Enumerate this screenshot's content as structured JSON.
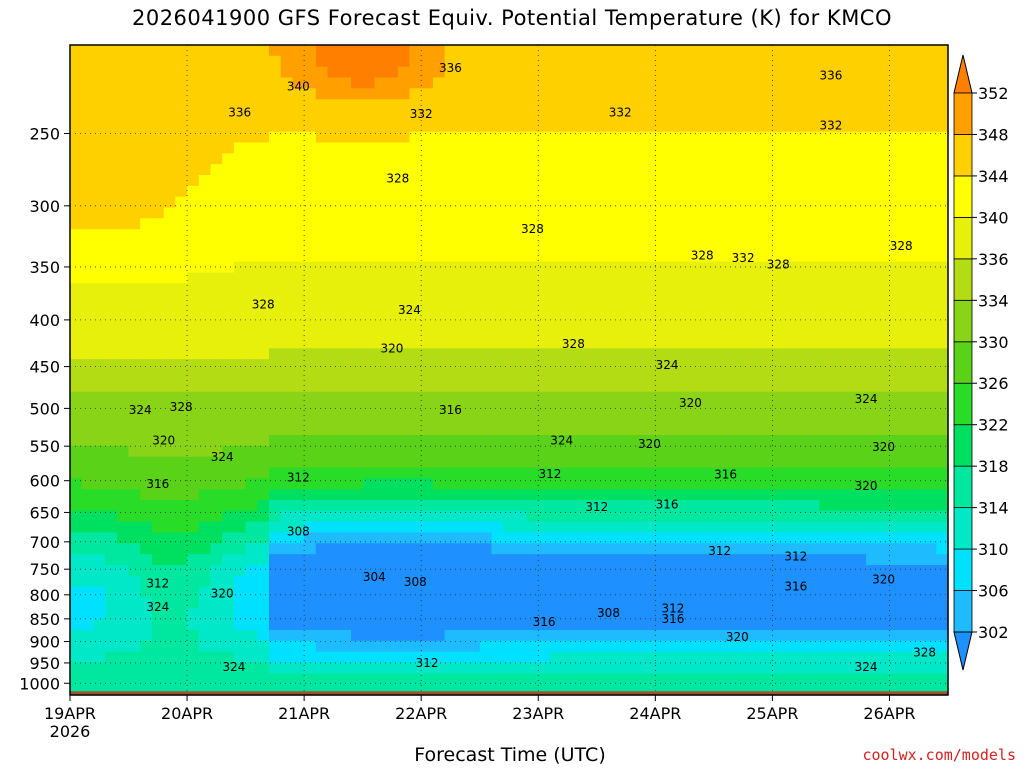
{
  "chart_data": {
    "type": "heatmap",
    "title": "2026041900 GFS Forecast Equiv. Potential Temperature (K) for KMCO",
    "xlabel": "Forecast Time (UTC)",
    "ylabel": "",
    "x_ticks": [
      "19APR",
      "20APR",
      "21APR",
      "22APR",
      "23APR",
      "24APR",
      "25APR",
      "26APR"
    ],
    "x_start_sublabel": "2026",
    "y_ticks": [
      250,
      300,
      350,
      400,
      450,
      500,
      550,
      600,
      650,
      700,
      750,
      800,
      850,
      900,
      950,
      1000
    ],
    "y_scale": "log-pressure",
    "y_range_hPa": [
      200,
      1030
    ],
    "x_range_days": [
      0,
      7.5
    ],
    "grid": true,
    "colorbar": {
      "levels": [
        302,
        306,
        310,
        314,
        318,
        322,
        326,
        330,
        334,
        336,
        340,
        344,
        348,
        352
      ],
      "colors": [
        "#1e90ff",
        "#1ebcff",
        "#00e0ff",
        "#00e8c8",
        "#00e8a0",
        "#00e060",
        "#28dc28",
        "#5ad218",
        "#8ad418",
        "#b4dc14",
        "#e6f00a",
        "#ffff00",
        "#ffd000",
        "#ffa000",
        "#ff8000"
      ]
    },
    "contour_labels": [
      {
        "text": "336",
        "x": 3.25,
        "p": 212
      },
      {
        "text": "340",
        "x": 1.95,
        "p": 222
      },
      {
        "text": "336",
        "x": 1.45,
        "p": 237
      },
      {
        "text": "332",
        "x": 3.0,
        "p": 238
      },
      {
        "text": "332",
        "x": 4.7,
        "p": 237
      },
      {
        "text": "336",
        "x": 6.5,
        "p": 216
      },
      {
        "text": "332",
        "x": 6.5,
        "p": 245
      },
      {
        "text": "328",
        "x": 2.8,
        "p": 280
      },
      {
        "text": "328",
        "x": 3.95,
        "p": 318
      },
      {
        "text": "328",
        "x": 5.4,
        "p": 340
      },
      {
        "text": "332",
        "x": 5.75,
        "p": 342
      },
      {
        "text": "328",
        "x": 6.05,
        "p": 348
      },
      {
        "text": "328",
        "x": 7.1,
        "p": 332
      },
      {
        "text": "328",
        "x": 1.65,
        "p": 385
      },
      {
        "text": "324",
        "x": 2.9,
        "p": 390
      },
      {
        "text": "328",
        "x": 4.3,
        "p": 425
      },
      {
        "text": "320",
        "x": 2.75,
        "p": 430
      },
      {
        "text": "324",
        "x": 5.1,
        "p": 448
      },
      {
        "text": "324",
        "x": 6.8,
        "p": 488
      },
      {
        "text": "324",
        "x": 0.6,
        "p": 502
      },
      {
        "text": "328",
        "x": 0.95,
        "p": 498
      },
      {
        "text": "316",
        "x": 3.25,
        "p": 502
      },
      {
        "text": "320",
        "x": 5.3,
        "p": 493
      },
      {
        "text": "320",
        "x": 0.8,
        "p": 542
      },
      {
        "text": "324",
        "x": 1.3,
        "p": 565
      },
      {
        "text": "324",
        "x": 4.2,
        "p": 542
      },
      {
        "text": "320",
        "x": 4.95,
        "p": 547
      },
      {
        "text": "320",
        "x": 6.95,
        "p": 551
      },
      {
        "text": "316",
        "x": 0.75,
        "p": 605
      },
      {
        "text": "312",
        "x": 1.95,
        "p": 595
      },
      {
        "text": "312",
        "x": 4.1,
        "p": 590
      },
      {
        "text": "316",
        "x": 5.6,
        "p": 591
      },
      {
        "text": "320",
        "x": 6.8,
        "p": 608
      },
      {
        "text": "316",
        "x": 5.1,
        "p": 637
      },
      {
        "text": "312",
        "x": 4.5,
        "p": 641
      },
      {
        "text": "308",
        "x": 1.95,
        "p": 682
      },
      {
        "text": "312",
        "x": 5.55,
        "p": 716
      },
      {
        "text": "312",
        "x": 6.2,
        "p": 726
      },
      {
        "text": "304",
        "x": 2.6,
        "p": 765
      },
      {
        "text": "308",
        "x": 2.95,
        "p": 775
      },
      {
        "text": "312",
        "x": 0.75,
        "p": 778
      },
      {
        "text": "320",
        "x": 1.3,
        "p": 797
      },
      {
        "text": "324",
        "x": 0.75,
        "p": 825
      },
      {
        "text": "316",
        "x": 6.2,
        "p": 783
      },
      {
        "text": "320",
        "x": 6.95,
        "p": 770
      },
      {
        "text": "312",
        "x": 5.15,
        "p": 828
      },
      {
        "text": "316",
        "x": 5.15,
        "p": 850
      },
      {
        "text": "308",
        "x": 4.6,
        "p": 838
      },
      {
        "text": "316",
        "x": 4.05,
        "p": 857
      },
      {
        "text": "320",
        "x": 5.7,
        "p": 890
      },
      {
        "text": "312",
        "x": 3.05,
        "p": 950
      },
      {
        "text": "324",
        "x": 1.4,
        "p": 960
      },
      {
        "text": "324",
        "x": 6.8,
        "p": 960
      },
      {
        "text": "328",
        "x": 7.3,
        "p": 925
      }
    ]
  },
  "labels": {
    "title": "2026041900 GFS Forecast Equiv. Potential Temperature (K) for KMCO",
    "xlabel": "Forecast Time (UTC)",
    "credit": "coolwx.com/models"
  }
}
